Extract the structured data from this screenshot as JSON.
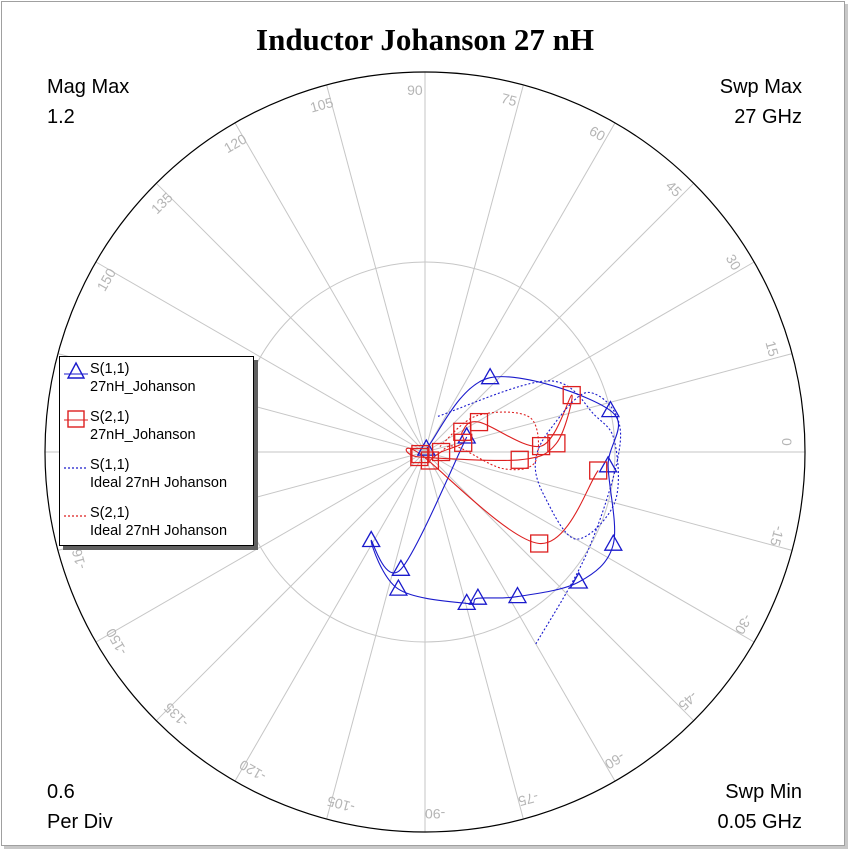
{
  "title": "Inductor Johanson 27 nH",
  "corners": {
    "mag_max_label": "Mag Max",
    "mag_max_value": "1.2",
    "swp_max_label": "Swp Max",
    "swp_max_value": "27  GHz",
    "per_div_value": "0.6",
    "per_div_label": "Per Div",
    "swp_min_label": "Swp Min",
    "swp_min_value": "0.05  GHz"
  },
  "colors": {
    "blue": "#1a1acc",
    "red": "#dd1f1f",
    "grid": "#c6c6c6",
    "angle_label": "#b5b5b5"
  },
  "legend": [
    {
      "name": "S(1,1)",
      "desc": "27nH_Johanson",
      "color": "#1a1acc",
      "marker": "triangle",
      "style": "solid"
    },
    {
      "name": "S(2,1)",
      "desc": "27nH_Johanson",
      "color": "#dd1f1f",
      "marker": "square",
      "style": "solid"
    },
    {
      "name": "S(1,1)",
      "desc": "Ideal 27nH Johanson",
      "color": "#1a1acc",
      "marker": "none",
      "style": "dotted"
    },
    {
      "name": "S(2,1)",
      "desc": "Ideal 27nH Johanson",
      "color": "#dd1f1f",
      "marker": "none",
      "style": "dotted"
    }
  ],
  "chart_data": {
    "type": "polar",
    "title": "Inductor Johanson 27 nH",
    "mag_max": 1.2,
    "per_div": 0.6,
    "sweep_min_ghz": 0.05,
    "sweep_max_ghz": 27,
    "angle_ticks": [
      0,
      15,
      30,
      45,
      60,
      75,
      90,
      105,
      120,
      135,
      150,
      -165,
      -150,
      -135,
      -120,
      -105,
      -90,
      -75,
      -60,
      -45,
      -30,
      -15
    ],
    "grid": true,
    "legend_position": "left",
    "series": [
      {
        "name": "S(1,1)",
        "label": "27nH_Johanson",
        "marker": "triangle",
        "points": [
          [
            0.01,
            65.8
          ],
          [
            0.312,
            48.8
          ],
          [
            0.6,
            12.6
          ],
          [
            0.58,
            -4.3
          ],
          [
            0.662,
            -26.1
          ],
          [
            0.636,
            -40.2
          ],
          [
            0.542,
            -57.4
          ],
          [
            0.491,
            -70.1
          ],
          [
            0.496,
            -74.6
          ],
          [
            0.441,
            -101.0
          ],
          [
            0.327,
            -121.3
          ],
          [
            0.378,
            -101.6
          ],
          [
            0.14,
            19.8
          ]
        ]
      },
      {
        "name": "S(2,1)",
        "label": "27nH_Johanson",
        "marker": "square",
        "points": [
          [
            0.031,
            -60.1
          ],
          [
            0.051,
            0.0
          ],
          [
            0.124,
            13.5
          ],
          [
            0.134,
            28.5
          ],
          [
            0.195,
            29.0
          ],
          [
            0.367,
            2.9
          ],
          [
            0.497,
            21.2
          ],
          [
            0.416,
            3.8
          ],
          [
            0.3,
            -4.7
          ],
          [
            0.024,
            -138.5
          ],
          [
            0.016,
            -155.3
          ],
          [
            0.462,
            -38.7
          ],
          [
            0.55,
            -6.1
          ]
        ]
      },
      {
        "name": "S(1,1)",
        "label": "Ideal 27nH Johanson",
        "marker": "none",
        "points": [
          [
            0.12,
            70
          ],
          [
            0.45,
            30
          ],
          [
            0.55,
            12
          ],
          [
            0.6,
            3
          ],
          [
            0.62,
            -15
          ],
          [
            0.55,
            -30
          ],
          [
            0.4,
            -20
          ],
          [
            0.35,
            -5
          ],
          [
            0.4,
            10
          ],
          [
            0.55,
            20
          ],
          [
            0.62,
            5
          ],
          [
            0.6,
            -30
          ],
          [
            0.7,
            -60
          ]
        ]
      },
      {
        "name": "S(2,1)",
        "label": "Ideal 27nH Johanson",
        "marker": "none",
        "points": [
          [
            0.05,
            20
          ],
          [
            0.2,
            35
          ],
          [
            0.35,
            18
          ],
          [
            0.35,
            -5
          ],
          [
            0.25,
            -12
          ],
          [
            0.1,
            10
          ],
          [
            0.05,
            0
          ]
        ]
      }
    ]
  }
}
